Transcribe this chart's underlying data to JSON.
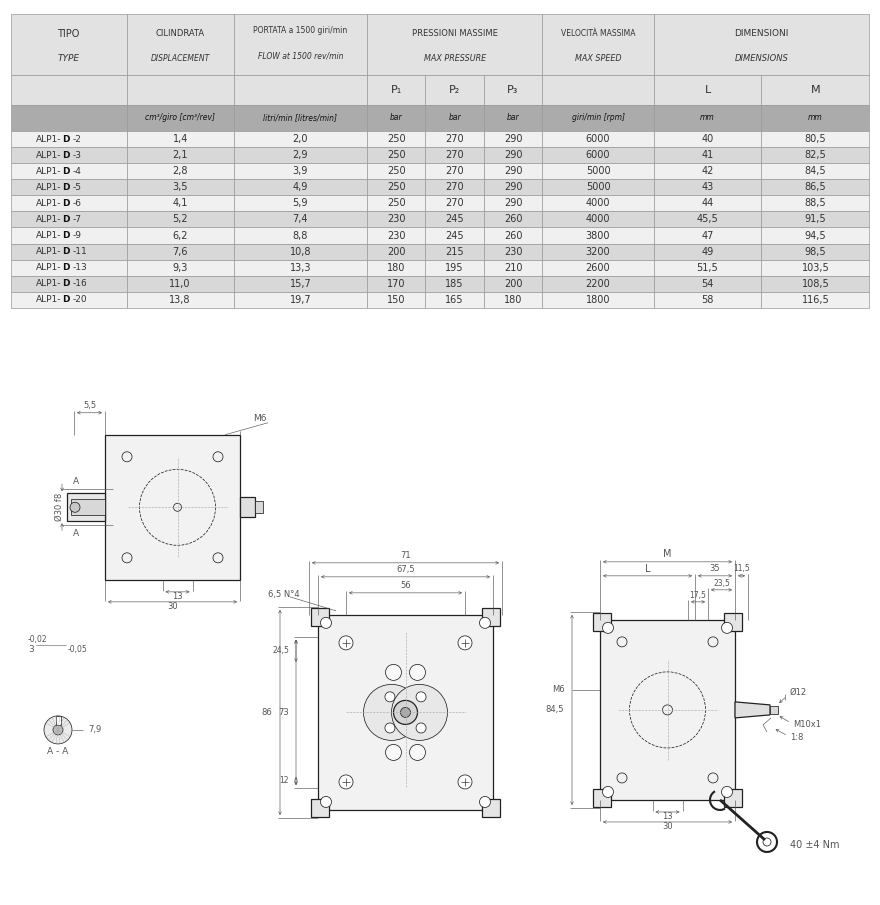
{
  "table_rows": [
    [
      "ALP1-D-2",
      "1,4",
      "2,0",
      "250",
      "270",
      "290",
      "6000",
      "40",
      "80,5"
    ],
    [
      "ALP1-D-3",
      "2,1",
      "2,9",
      "250",
      "270",
      "290",
      "6000",
      "41",
      "82,5"
    ],
    [
      "ALP1-D-4",
      "2,8",
      "3,9",
      "250",
      "270",
      "290",
      "5000",
      "42",
      "84,5"
    ],
    [
      "ALP1-D-5",
      "3,5",
      "4,9",
      "250",
      "270",
      "290",
      "5000",
      "43",
      "86,5"
    ],
    [
      "ALP1-D-6",
      "4,1",
      "5,9",
      "250",
      "270",
      "290",
      "4000",
      "44",
      "88,5"
    ],
    [
      "ALP1-D-7",
      "5,2",
      "7,4",
      "230",
      "245",
      "260",
      "4000",
      "45,5",
      "91,5"
    ],
    [
      "ALP1-D-9",
      "6,2",
      "8,8",
      "230",
      "245",
      "260",
      "3800",
      "47",
      "94,5"
    ],
    [
      "ALP1-D-11",
      "7,6",
      "10,8",
      "200",
      "215",
      "230",
      "3200",
      "49",
      "98,5"
    ],
    [
      "ALP1-D-13",
      "9,3",
      "13,3",
      "180",
      "195",
      "210",
      "2600",
      "51,5",
      "103,5"
    ],
    [
      "ALP1-D-16",
      "11,0",
      "15,7",
      "170",
      "185",
      "200",
      "2200",
      "54",
      "108,5"
    ],
    [
      "ALP1-D-20",
      "13,8",
      "19,7",
      "150",
      "165",
      "180",
      "1800",
      "58",
      "116,5"
    ]
  ],
  "hdr_bg": "#e2e2e2",
  "sub_bg": "#ababab",
  "row_light": "#f0f0f0",
  "row_dark": "#d8d8d8",
  "border": "#999999",
  "tc": "#333333",
  "fig_bg": "#ffffff",
  "lc": "#222222",
  "dc": "#555555"
}
